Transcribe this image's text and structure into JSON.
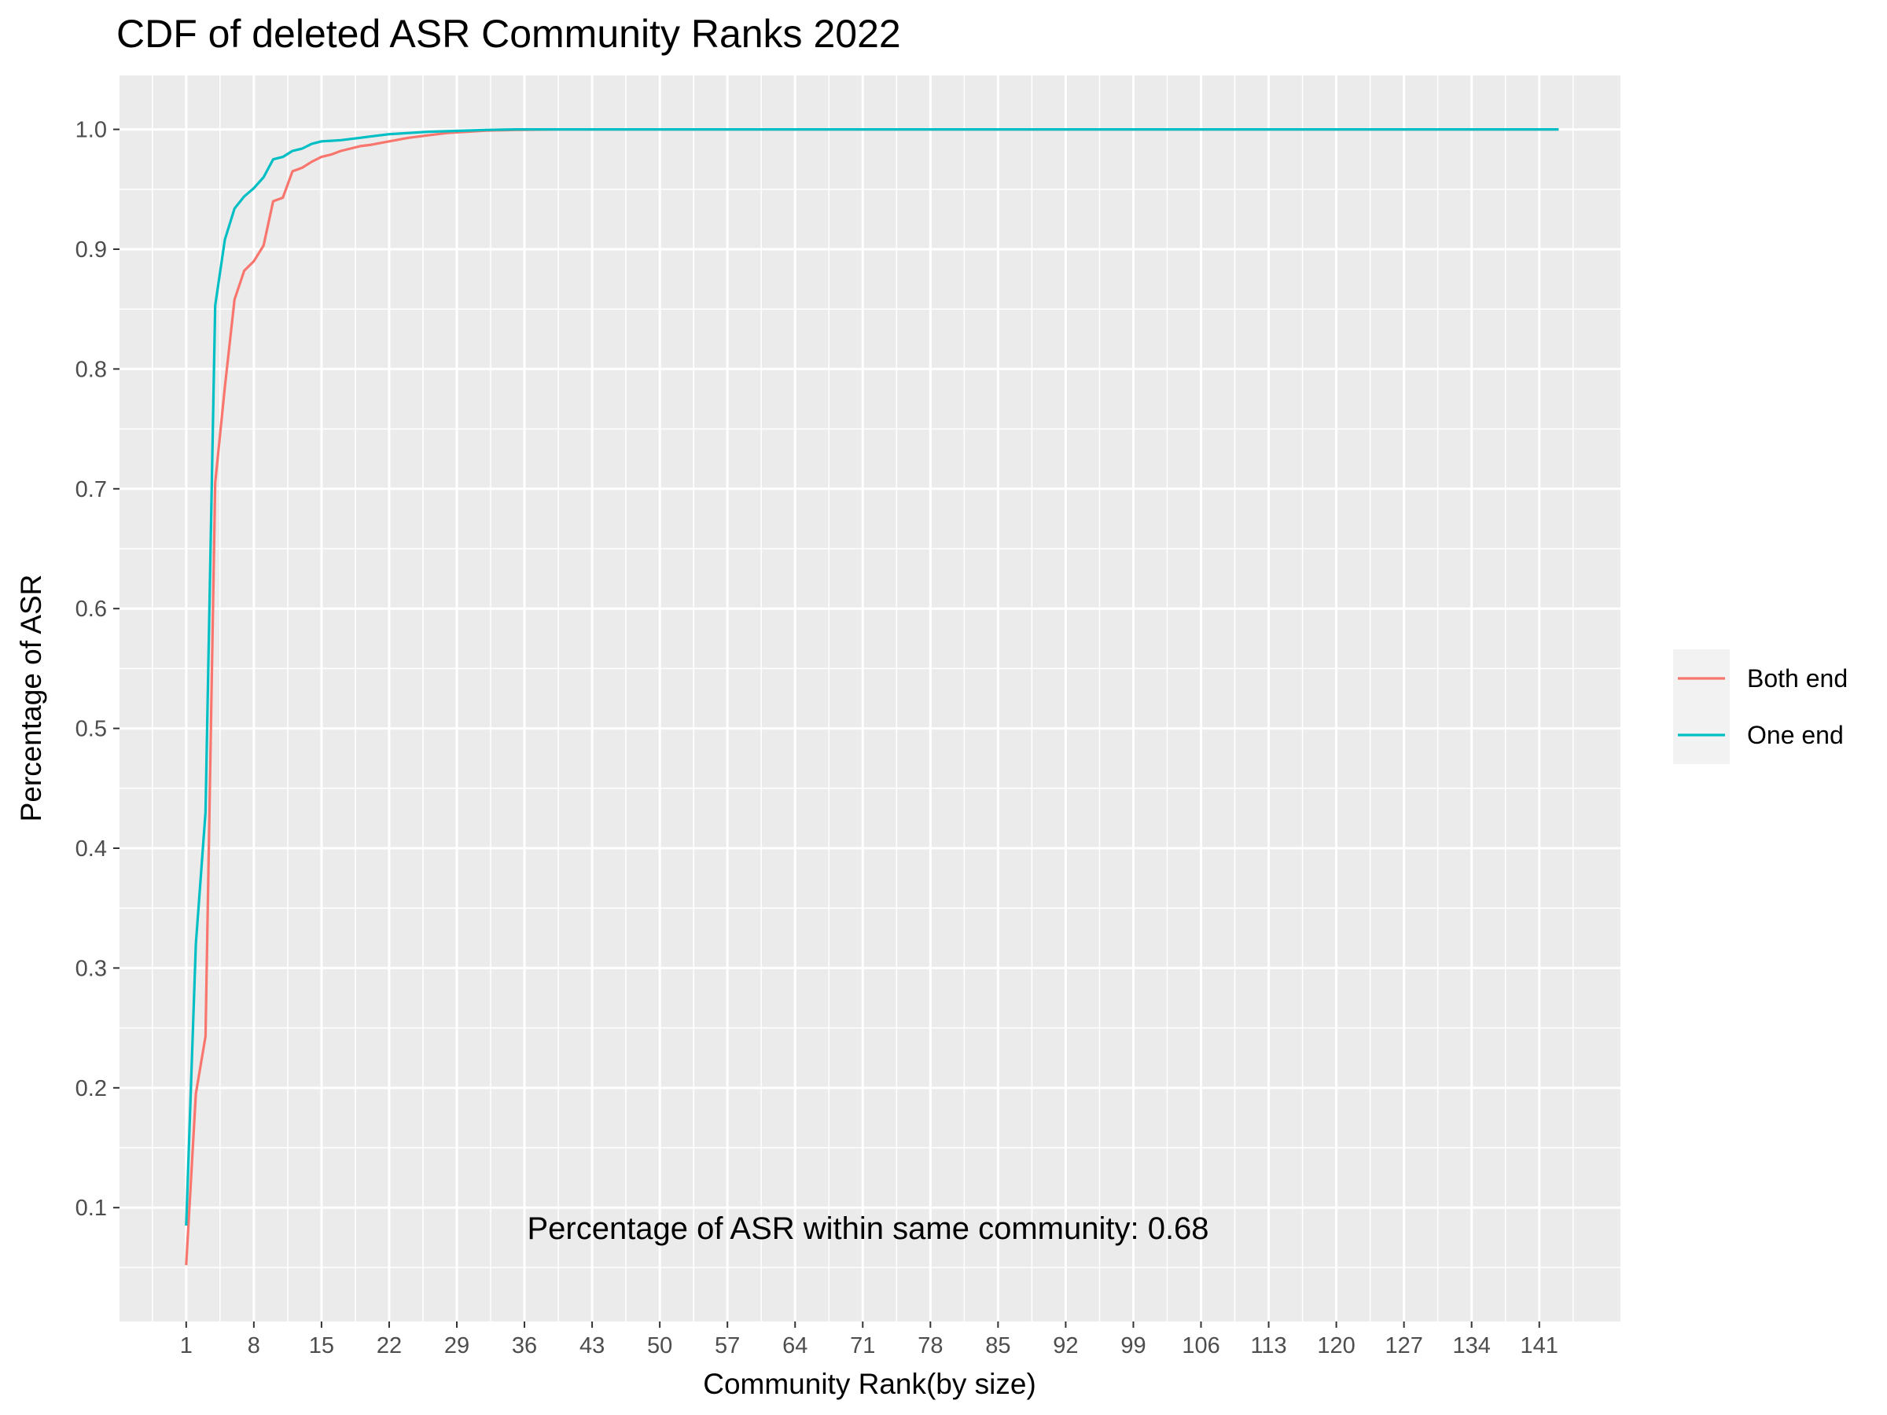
{
  "chart_data": {
    "type": "line",
    "title": "CDF of deleted ASR Community Ranks 2022",
    "xlabel": "Community Rank(by size)",
    "ylabel": "Percentage of ASR",
    "xlim": [
      -5.9,
      149.4
    ],
    "ylim": [
      0.005,
      1.045
    ],
    "x_ticks": [
      1,
      8,
      15,
      22,
      29,
      36,
      43,
      50,
      57,
      64,
      71,
      78,
      85,
      92,
      99,
      106,
      113,
      120,
      127,
      134,
      141
    ],
    "x_tick_labels": [
      "1",
      "8",
      "15",
      "22",
      "29",
      "36",
      "43",
      "50",
      "57",
      "64",
      "71",
      "78",
      "85",
      "92",
      "99",
      "106",
      "113",
      "120",
      "127",
      "134",
      "141"
    ],
    "y_ticks": [
      0.1,
      0.2,
      0.3,
      0.4,
      0.5,
      0.6,
      0.7,
      0.8,
      0.9,
      1.0
    ],
    "y_tick_labels": [
      "0.1",
      "0.2",
      "0.3",
      "0.4",
      "0.5",
      "0.6",
      "0.7",
      "0.8",
      "0.9",
      "1.0"
    ],
    "grid": true,
    "legend_position": "right",
    "annotation": "Percentage of ASR within same community: 0.68",
    "series": [
      {
        "name": "Both end",
        "color": "#F8766D",
        "x": [
          1,
          2,
          3,
          4,
          5,
          6,
          7,
          8,
          9,
          10,
          11,
          12,
          13,
          14,
          15,
          16,
          17,
          18,
          19,
          20,
          22,
          24,
          26,
          28,
          30,
          32,
          35,
          40,
          50,
          60,
          80,
          100,
          120,
          143
        ],
        "y": [
          0.052,
          0.195,
          0.243,
          0.705,
          0.785,
          0.858,
          0.882,
          0.89,
          0.903,
          0.94,
          0.943,
          0.965,
          0.968,
          0.973,
          0.977,
          0.979,
          0.982,
          0.984,
          0.986,
          0.987,
          0.99,
          0.993,
          0.995,
          0.997,
          0.998,
          0.999,
          0.9995,
          1.0,
          1.0,
          1.0,
          1.0,
          1.0,
          1.0,
          1.0
        ]
      },
      {
        "name": "One end",
        "color": "#00BFC4",
        "x": [
          1,
          2,
          3,
          4,
          5,
          6,
          7,
          8,
          9,
          10,
          11,
          12,
          13,
          14,
          15,
          16,
          17,
          18,
          19,
          20,
          22,
          24,
          26,
          28,
          30,
          32,
          35,
          40,
          50,
          60,
          80,
          100,
          120,
          143
        ],
        "y": [
          0.085,
          0.32,
          0.43,
          0.853,
          0.908,
          0.934,
          0.944,
          0.951,
          0.96,
          0.975,
          0.977,
          0.982,
          0.984,
          0.988,
          0.99,
          0.9905,
          0.991,
          0.992,
          0.993,
          0.994,
          0.996,
          0.997,
          0.998,
          0.9985,
          0.999,
          0.9995,
          1.0,
          1.0,
          1.0,
          1.0,
          1.0,
          1.0,
          1.0,
          1.0
        ]
      }
    ]
  }
}
